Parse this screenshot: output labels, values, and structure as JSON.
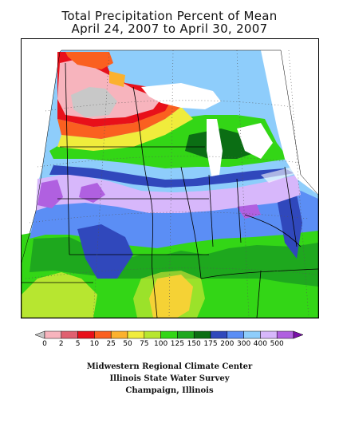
{
  "title": {
    "line1": "Total Precipitation Percent of Mean",
    "line2": "April 24, 2007 to April 30, 2007"
  },
  "legend": {
    "ticks": [
      "0",
      "2",
      "5",
      "10",
      "25",
      "50",
      "75",
      "100",
      "125",
      "150",
      "175",
      "200",
      "300",
      "400",
      "500"
    ],
    "colors": [
      "#c8c8c8",
      "#f7b4bd",
      "#e06070",
      "#e8101a",
      "#fa6020",
      "#fbb12e",
      "#f0ec3c",
      "#b7e630",
      "#33d616",
      "#1ea81e",
      "#0b6e14",
      "#3048bc",
      "#5b8ef5",
      "#8ecdfb",
      "#d7b7fb",
      "#b060e0",
      "#7a10a8"
    ]
  },
  "map": {
    "region": "Midwest United States"
  },
  "credits": {
    "line1": "Midwestern Regional Climate Center",
    "line2": "Illinois State Water Survey",
    "line3": "Champaign, Illinois"
  }
}
